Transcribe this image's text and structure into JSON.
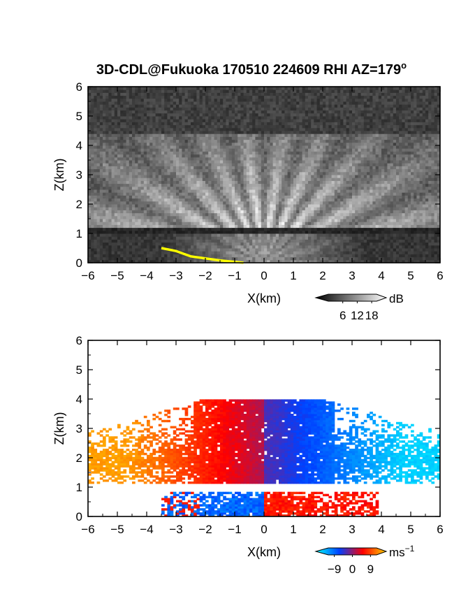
{
  "title": "3D-CDL@Fukuoka 170510 224609 RHI AZ=179",
  "title_degree_mark": "o",
  "chart_data": [
    {
      "type": "heatmap",
      "variable": "backscatter intensity",
      "xlabel": "X(km)",
      "ylabel": "Z(km)",
      "xlim": [
        -6,
        6
      ],
      "ylim": [
        0,
        6
      ],
      "x_ticks": [
        -6,
        -5,
        -4,
        -3,
        -2,
        -1,
        0,
        1,
        2,
        3,
        4,
        5,
        6
      ],
      "y_ticks": [
        0,
        1,
        2,
        3,
        4,
        5,
        6
      ],
      "colormap": "grayscale",
      "colorbar": {
        "label": "dB",
        "ticks": [
          6,
          12,
          18
        ],
        "range": [
          0,
          20
        ],
        "colors": [
          "#000000",
          "#ffffff"
        ]
      },
      "features": {
        "dark_layer_height_km": 1.1,
        "echo_top_km": 4.2,
        "ground_clutter_line": {
          "color": "#ffff00",
          "points": [
            [
              -3.5,
              0.5
            ],
            [
              -3.0,
              0.4
            ],
            [
              -2.5,
              0.22
            ],
            [
              -1.5,
              0.08
            ],
            [
              -0.7,
              0.0
            ]
          ]
        }
      }
    },
    {
      "type": "heatmap",
      "variable": "Doppler velocity",
      "xlabel": "X(km)",
      "ylabel": "Z(km)",
      "xlim": [
        -6,
        6
      ],
      "ylim": [
        0,
        6
      ],
      "x_ticks": [
        -6,
        -5,
        -4,
        -3,
        -2,
        -1,
        0,
        1,
        2,
        3,
        4,
        5,
        6
      ],
      "y_ticks": [
        0,
        1,
        2,
        3,
        4,
        5,
        6
      ],
      "colormap": "diverging",
      "colorbar": {
        "label": "ms",
        "label_exponent": "−1",
        "ticks": [
          "−9",
          "0",
          "9"
        ],
        "range": [
          -12,
          12
        ],
        "colors": [
          "#00ffff",
          "#0040ff",
          "#ff0000",
          "#ffd000"
        ]
      },
      "features": {
        "left_velocity_ms": 10,
        "right_velocity_ms": -10,
        "upper_layer_km": [
          1.1,
          4.0
        ],
        "lower_layer_km": [
          0.0,
          0.85
        ],
        "lower_left_velocity_ms": -7,
        "lower_right_velocity_ms": 6
      }
    }
  ]
}
